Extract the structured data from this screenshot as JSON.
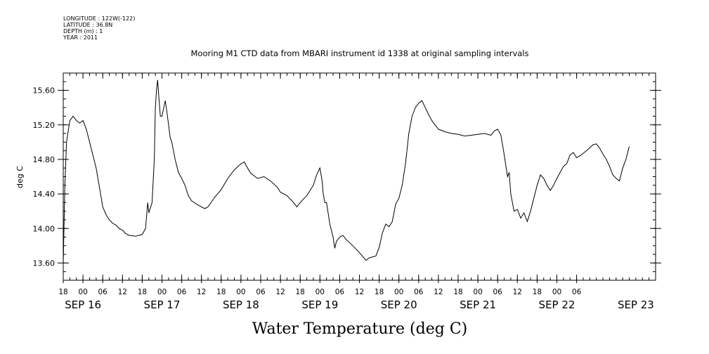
{
  "meta": {
    "longitude": "LONGITUDE : 122W(-122)",
    "latitude": "LATITUDE : 36.8N",
    "depth": "DEPTH (m) : 1",
    "year": "YEAR : 2011"
  },
  "chart_data": {
    "type": "line",
    "title": "Mooring M1 CTD data from MBARI instrument id 1338 at original sampling intervals",
    "xlabel": "Water Temperature (deg C)",
    "ylabel": "deg C",
    "xlim": [
      "2011-09-15 18:00",
      "2011-09-23 06:00"
    ],
    "ylim": [
      13.4,
      15.8
    ],
    "yticks": [
      "13.60",
      "14.00",
      "14.40",
      "14.80",
      "15.20",
      "15.60"
    ],
    "x_hour_ticks": [
      {
        "t": "2011-09-15 18:00",
        "label": "18"
      },
      {
        "t": "2011-09-16 00:00",
        "label": "00"
      },
      {
        "t": "2011-09-16 06:00",
        "label": "06"
      },
      {
        "t": "2011-09-16 12:00",
        "label": "12"
      },
      {
        "t": "2011-09-16 18:00",
        "label": "18"
      },
      {
        "t": "2011-09-17 00:00",
        "label": "00"
      },
      {
        "t": "2011-09-17 06:00",
        "label": "06"
      },
      {
        "t": "2011-09-17 12:00",
        "label": "12"
      },
      {
        "t": "2011-09-17 18:00",
        "label": "18"
      },
      {
        "t": "2011-09-18 00:00",
        "label": "00"
      },
      {
        "t": "2011-09-18 06:00",
        "label": "06"
      },
      {
        "t": "2011-09-18 12:00",
        "label": "12"
      },
      {
        "t": "2011-09-18 18:00",
        "label": "18"
      },
      {
        "t": "2011-09-19 00:00",
        "label": "00"
      },
      {
        "t": "2011-09-19 06:00",
        "label": "06"
      },
      {
        "t": "2011-09-19 12:00",
        "label": "12"
      },
      {
        "t": "2011-09-19 18:00",
        "label": "18"
      },
      {
        "t": "2011-09-20 00:00",
        "label": "00"
      },
      {
        "t": "2011-09-20 06:00",
        "label": "06"
      },
      {
        "t": "2011-09-20 12:00",
        "label": "12"
      },
      {
        "t": "2011-09-20 18:00",
        "label": "18"
      },
      {
        "t": "2011-09-21 00:00",
        "label": "00"
      },
      {
        "t": "2011-09-21 06:00",
        "label": "06"
      },
      {
        "t": "2011-09-21 12:00",
        "label": "12"
      },
      {
        "t": "2011-09-21 18:00",
        "label": "18"
      },
      {
        "t": "2011-09-22 00:00",
        "label": "00"
      },
      {
        "t": "2011-09-22 06:00",
        "label": "06"
      }
    ],
    "x_date_labels": [
      {
        "t": "2011-09-16 00:00",
        "label": "SEP 16"
      },
      {
        "t": "2011-09-17 00:00",
        "label": "SEP 17"
      },
      {
        "t": "2011-09-18 00:00",
        "label": "SEP 18"
      },
      {
        "t": "2011-09-19 00:00",
        "label": "SEP 19"
      },
      {
        "t": "2011-09-20 00:00",
        "label": "SEP 20"
      },
      {
        "t": "2011-09-21 00:00",
        "label": "SEP 21"
      },
      {
        "t": "2011-09-22 00:00",
        "label": "SEP 22"
      },
      {
        "t": "2011-09-23 00:00",
        "label": "SEP 23"
      }
    ],
    "grid": false,
    "series": [
      {
        "color": "#000000",
        "points": [
          [
            "2011-09-15 18:00",
            13.6
          ],
          [
            "2011-09-15 18:30",
            14.5
          ],
          [
            "2011-09-15 19:00",
            15.0
          ],
          [
            "2011-09-15 20:00",
            15.25
          ],
          [
            "2011-09-15 21:00",
            15.3
          ],
          [
            "2011-09-15 22:00",
            15.25
          ],
          [
            "2011-09-15 23:00",
            15.22
          ],
          [
            "2011-09-16 00:00",
            15.25
          ],
          [
            "2011-09-16 01:00",
            15.15
          ],
          [
            "2011-09-16 02:00",
            15.0
          ],
          [
            "2011-09-16 03:00",
            14.85
          ],
          [
            "2011-09-16 04:00",
            14.7
          ],
          [
            "2011-09-16 05:00",
            14.48
          ],
          [
            "2011-09-16 06:00",
            14.25
          ],
          [
            "2011-09-16 07:00",
            14.16
          ],
          [
            "2011-09-16 08:00",
            14.1
          ],
          [
            "2011-09-16 09:00",
            14.06
          ],
          [
            "2011-09-16 10:00",
            14.04
          ],
          [
            "2011-09-16 11:00",
            14.0
          ],
          [
            "2011-09-16 12:00",
            13.98
          ],
          [
            "2011-09-16 13:00",
            13.94
          ],
          [
            "2011-09-16 14:00",
            13.92
          ],
          [
            "2011-09-16 16:00",
            13.91
          ],
          [
            "2011-09-16 18:00",
            13.93
          ],
          [
            "2011-09-16 19:00",
            14.0
          ],
          [
            "2011-09-16 19:40",
            14.3
          ],
          [
            "2011-09-16 20:00",
            14.18
          ],
          [
            "2011-09-16 21:00",
            14.3
          ],
          [
            "2011-09-16 21:40",
            14.8
          ],
          [
            "2011-09-16 22:00",
            15.4
          ],
          [
            "2011-09-16 22:20",
            15.6
          ],
          [
            "2011-09-16 22:40",
            15.72
          ],
          [
            "2011-09-16 23:00",
            15.55
          ],
          [
            "2011-09-16 23:30",
            15.3
          ],
          [
            "2011-09-17 00:00",
            15.3
          ],
          [
            "2011-09-17 00:40",
            15.42
          ],
          [
            "2011-09-17 01:00",
            15.48
          ],
          [
            "2011-09-17 01:30",
            15.35
          ],
          [
            "2011-09-17 02:00",
            15.2
          ],
          [
            "2011-09-17 02:30",
            15.05
          ],
          [
            "2011-09-17 03:00",
            15.0
          ],
          [
            "2011-09-17 04:00",
            14.8
          ],
          [
            "2011-09-17 05:00",
            14.65
          ],
          [
            "2011-09-17 06:00",
            14.58
          ],
          [
            "2011-09-17 07:00",
            14.5
          ],
          [
            "2011-09-17 08:00",
            14.38
          ],
          [
            "2011-09-17 09:00",
            14.32
          ],
          [
            "2011-09-17 11:00",
            14.27
          ],
          [
            "2011-09-17 13:00",
            14.23
          ],
          [
            "2011-09-17 14:00",
            14.25
          ],
          [
            "2011-09-17 16:00",
            14.36
          ],
          [
            "2011-09-17 18:00",
            14.45
          ],
          [
            "2011-09-17 20:00",
            14.58
          ],
          [
            "2011-09-17 22:00",
            14.68
          ],
          [
            "2011-09-18 00:00",
            14.75
          ],
          [
            "2011-09-18 01:00",
            14.77
          ],
          [
            "2011-09-18 02:00",
            14.7
          ],
          [
            "2011-09-18 03:00",
            14.64
          ],
          [
            "2011-09-18 05:00",
            14.58
          ],
          [
            "2011-09-18 07:00",
            14.6
          ],
          [
            "2011-09-18 09:00",
            14.55
          ],
          [
            "2011-09-18 11:00",
            14.48
          ],
          [
            "2011-09-18 12:00",
            14.42
          ],
          [
            "2011-09-18 14:00",
            14.38
          ],
          [
            "2011-09-18 16:00",
            14.3
          ],
          [
            "2011-09-18 17:00",
            14.25
          ],
          [
            "2011-09-18 18:00",
            14.3
          ],
          [
            "2011-09-18 20:00",
            14.38
          ],
          [
            "2011-09-18 22:00",
            14.5
          ],
          [
            "2011-09-18 23:00",
            14.62
          ],
          [
            "2011-09-19 00:00",
            14.7
          ],
          [
            "2011-09-19 00:40",
            14.55
          ],
          [
            "2011-09-19 01:00",
            14.4
          ],
          [
            "2011-09-19 01:30",
            14.3
          ],
          [
            "2011-09-19 02:00",
            14.3
          ],
          [
            "2011-09-19 03:00",
            14.05
          ],
          [
            "2011-09-19 04:00",
            13.9
          ],
          [
            "2011-09-19 04:30",
            13.77
          ],
          [
            "2011-09-19 05:00",
            13.85
          ],
          [
            "2011-09-19 06:00",
            13.9
          ],
          [
            "2011-09-19 07:00",
            13.92
          ],
          [
            "2011-09-19 08:00",
            13.87
          ],
          [
            "2011-09-19 10:00",
            13.8
          ],
          [
            "2011-09-19 12:00",
            13.72
          ],
          [
            "2011-09-19 14:00",
            13.63
          ],
          [
            "2011-09-19 15:00",
            13.66
          ],
          [
            "2011-09-19 17:00",
            13.68
          ],
          [
            "2011-09-19 18:00",
            13.78
          ],
          [
            "2011-09-19 19:00",
            13.95
          ],
          [
            "2011-09-19 20:00",
            14.05
          ],
          [
            "2011-09-19 21:00",
            14.02
          ],
          [
            "2011-09-19 22:00",
            14.08
          ],
          [
            "2011-09-19 23:00",
            14.28
          ],
          [
            "2011-09-20 00:00",
            14.35
          ],
          [
            "2011-09-20 01:00",
            14.5
          ],
          [
            "2011-09-20 02:00",
            14.75
          ],
          [
            "2011-09-20 03:00",
            15.1
          ],
          [
            "2011-09-20 04:00",
            15.3
          ],
          [
            "2011-09-20 05:00",
            15.4
          ],
          [
            "2011-09-20 06:00",
            15.45
          ],
          [
            "2011-09-20 07:00",
            15.48
          ],
          [
            "2011-09-20 08:00",
            15.4
          ],
          [
            "2011-09-20 09:00",
            15.32
          ],
          [
            "2011-09-20 10:00",
            15.25
          ],
          [
            "2011-09-20 11:00",
            15.2
          ],
          [
            "2011-09-20 12:00",
            15.15
          ],
          [
            "2011-09-20 14:00",
            15.12
          ],
          [
            "2011-09-20 16:00",
            15.1
          ],
          [
            "2011-09-20 18:00",
            15.09
          ],
          [
            "2011-09-20 20:00",
            15.07
          ],
          [
            "2011-09-20 22:00",
            15.08
          ],
          [
            "2011-09-21 00:00",
            15.09
          ],
          [
            "2011-09-21 02:00",
            15.1
          ],
          [
            "2011-09-21 04:00",
            15.08
          ],
          [
            "2011-09-21 05:00",
            15.13
          ],
          [
            "2011-09-21 06:00",
            15.15
          ],
          [
            "2011-09-21 07:00",
            15.08
          ],
          [
            "2011-09-21 08:00",
            14.85
          ],
          [
            "2011-09-21 09:00",
            14.6
          ],
          [
            "2011-09-21 09:30",
            14.65
          ],
          [
            "2011-09-21 10:00",
            14.4
          ],
          [
            "2011-09-21 11:00",
            14.2
          ],
          [
            "2011-09-21 12:00",
            14.22
          ],
          [
            "2011-09-21 13:00",
            14.12
          ],
          [
            "2011-09-21 14:00",
            14.18
          ],
          [
            "2011-09-21 15:00",
            14.08
          ],
          [
            "2011-09-21 16:00",
            14.2
          ],
          [
            "2011-09-21 17:00",
            14.35
          ],
          [
            "2011-09-21 18:00",
            14.5
          ],
          [
            "2011-09-21 19:00",
            14.62
          ],
          [
            "2011-09-21 20:00",
            14.58
          ],
          [
            "2011-09-21 21:00",
            14.5
          ],
          [
            "2011-09-21 22:00",
            14.44
          ],
          [
            "2011-09-21 23:00",
            14.5
          ],
          [
            "2011-09-22 00:00",
            14.58
          ],
          [
            "2011-09-22 01:00",
            14.65
          ],
          [
            "2011-09-22 02:00",
            14.72
          ],
          [
            "2011-09-22 03:00",
            14.75
          ],
          [
            "2011-09-22 04:00",
            14.85
          ],
          [
            "2011-09-22 05:00",
            14.88
          ],
          [
            "2011-09-22 06:00",
            14.82
          ],
          [
            "2011-09-22 07:00",
            14.84
          ],
          [
            "2011-09-22 09:00",
            14.9
          ],
          [
            "2011-09-22 11:00",
            14.97
          ],
          [
            "2011-09-22 12:00",
            14.98
          ],
          [
            "2011-09-22 13:00",
            14.93
          ],
          [
            "2011-09-22 14:00",
            14.86
          ],
          [
            "2011-09-22 15:00",
            14.8
          ],
          [
            "2011-09-22 16:00",
            14.72
          ],
          [
            "2011-09-22 17:00",
            14.62
          ],
          [
            "2011-09-22 18:00",
            14.58
          ],
          [
            "2011-09-22 19:00",
            14.55
          ],
          [
            "2011-09-22 20:00",
            14.7
          ],
          [
            "2011-09-22 21:00",
            14.8
          ],
          [
            "2011-09-22 22:00",
            14.95
          ]
        ]
      }
    ]
  }
}
